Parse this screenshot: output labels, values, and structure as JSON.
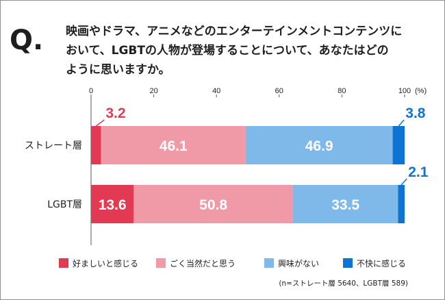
{
  "question": {
    "mark": "Q.",
    "lines": [
      "映画やドラマ、アニメなどのエンターテインメントコンテンツに",
      "おいて、LGBTの人物が登場することについて、あなたはどの",
      "ように思いますか。"
    ]
  },
  "chart_data": {
    "type": "bar",
    "orientation": "horizontal",
    "stacked": true,
    "xlim": [
      0,
      100
    ],
    "xticks": [
      "0",
      "20",
      "40",
      "60",
      "80",
      "100"
    ],
    "x_unit": "(%)",
    "categories": [
      "ストレート層",
      "LGBT層"
    ],
    "series": [
      {
        "name": "好ましいと感じる",
        "color": "#e23a52",
        "values": [
          3.2,
          13.6
        ],
        "labels": [
          "3.2",
          "13.6"
        ],
        "label_outside": [
          true,
          false
        ]
      },
      {
        "name": "ごく当然だと思う",
        "color": "#f09aa7",
        "values": [
          46.1,
          50.8
        ],
        "labels": [
          "46.1",
          "50.8"
        ],
        "label_outside": [
          false,
          false
        ]
      },
      {
        "name": "興味がない",
        "color": "#7fb9ea",
        "values": [
          46.9,
          33.5
        ],
        "labels": [
          "46.9",
          "33.5"
        ],
        "label_outside": [
          false,
          false
        ]
      },
      {
        "name": "不快に感じる",
        "color": "#0d74d1",
        "values": [
          3.8,
          2.1
        ],
        "labels": [
          "3.8",
          "2.1"
        ],
        "label_outside": [
          true,
          true
        ]
      }
    ],
    "note": "(n=ストレート層 5640、LGBT層 589)"
  }
}
